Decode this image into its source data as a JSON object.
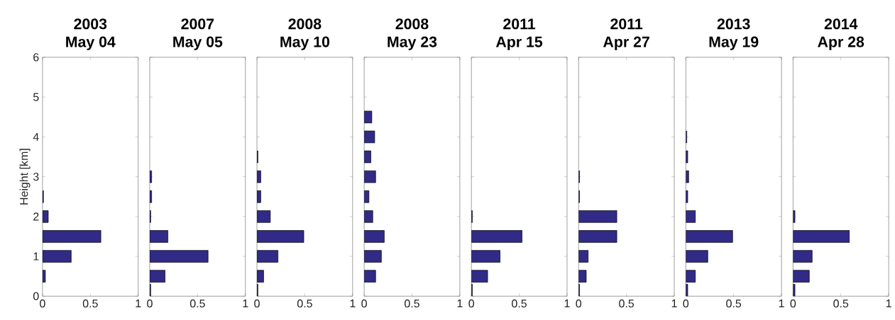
{
  "chart_data": [
    {
      "type": "bar",
      "orientation": "horizontal",
      "title": "2003",
      "subtitle": "May 04",
      "ylabel": "Height [km]",
      "x": [
        0.5,
        1,
        1.5,
        2,
        2.5
      ],
      "values": [
        0.03,
        0.3,
        0.61,
        0.06,
        0.01
      ],
      "color": "#312a87",
      "xlim": [
        0,
        1
      ],
      "xticks": [
        0,
        0.5,
        1
      ],
      "ylim": [
        0,
        6
      ],
      "yticks": [
        0,
        1,
        2,
        3,
        4,
        5,
        6
      ]
    },
    {
      "type": "bar",
      "orientation": "horizontal",
      "title": "2007",
      "subtitle": "May 05",
      "x": [
        0.15,
        0.5,
        1,
        1.5,
        2,
        2.5,
        3
      ],
      "values": [
        0.01,
        0.16,
        0.61,
        0.19,
        0.01,
        0.02,
        0.02
      ],
      "color": "#312a87",
      "xlim": [
        0,
        1
      ],
      "xticks": [
        0,
        0.5,
        1
      ],
      "ylim": [
        0,
        6
      ],
      "yticks": [
        0,
        1,
        2,
        3,
        4,
        5,
        6
      ],
      "tick_labels": "x"
    },
    {
      "type": "bar",
      "orientation": "horizontal",
      "title": "2008",
      "subtitle": "May 10",
      "x": [
        0.15,
        0.5,
        1,
        1.5,
        2,
        2.5,
        3,
        3.5
      ],
      "values": [
        0.01,
        0.07,
        0.22,
        0.49,
        0.14,
        0.04,
        0.04,
        0.01
      ],
      "color": "#312a87",
      "xlim": [
        0,
        1
      ],
      "xticks": [
        0,
        0.5,
        1
      ],
      "ylim": [
        0,
        6
      ],
      "yticks": [
        0,
        1,
        2,
        3,
        4,
        5,
        6
      ],
      "tick_labels": "x"
    },
    {
      "type": "bar",
      "orientation": "horizontal",
      "title": "2008",
      "subtitle": "May 23",
      "x": [
        0.5,
        1,
        1.5,
        2,
        2.5,
        3,
        3.5,
        4,
        4.5
      ],
      "values": [
        0.12,
        0.18,
        0.21,
        0.09,
        0.05,
        0.12,
        0.07,
        0.11,
        0.08
      ],
      "color": "#312a87",
      "xlim": [
        0,
        1
      ],
      "xticks": [
        0,
        0.5,
        1
      ],
      "ylim": [
        0,
        6
      ],
      "yticks": [
        0,
        1,
        2,
        3,
        4,
        5,
        6
      ],
      "tick_labels": "x"
    },
    {
      "type": "bar",
      "orientation": "horizontal",
      "title": "2011",
      "subtitle": "Apr 15",
      "x": [
        0.15,
        0.5,
        1,
        1.5,
        2
      ],
      "values": [
        0.01,
        0.17,
        0.3,
        0.53,
        0.01
      ],
      "color": "#312a87",
      "xlim": [
        0,
        1
      ],
      "xticks": [
        0,
        0.5,
        1
      ],
      "ylim": [
        0,
        6
      ],
      "yticks": [
        0,
        1,
        2,
        3,
        4,
        5,
        6
      ],
      "tick_labels": "x"
    },
    {
      "type": "bar",
      "orientation": "horizontal",
      "title": "2011",
      "subtitle": "Apr 27",
      "x": [
        0.15,
        0.5,
        1,
        1.5,
        2,
        2.5,
        3
      ],
      "values": [
        0.01,
        0.08,
        0.1,
        0.4,
        0.4,
        0.01,
        0.01
      ],
      "color": "#312a87",
      "xlim": [
        0,
        1
      ],
      "xticks": [
        0,
        0.5,
        1
      ],
      "ylim": [
        0,
        6
      ],
      "yticks": [
        0,
        1,
        2,
        3,
        4,
        5,
        6
      ],
      "tick_labels": "x"
    },
    {
      "type": "bar",
      "orientation": "horizontal",
      "title": "2013",
      "subtitle": "May 19",
      "x": [
        0.15,
        0.5,
        1,
        1.5,
        2,
        2.5,
        3,
        3.5,
        4
      ],
      "values": [
        0.02,
        0.1,
        0.23,
        0.49,
        0.1,
        0.02,
        0.03,
        0.02,
        0.01
      ],
      "color": "#312a87",
      "xlim": [
        0,
        1
      ],
      "xticks": [
        0,
        0.5,
        1
      ],
      "ylim": [
        0,
        6
      ],
      "yticks": [
        0,
        1,
        2,
        3,
        4,
        5,
        6
      ],
      "tick_labels": "x"
    },
    {
      "type": "bar",
      "orientation": "horizontal",
      "title": "2014",
      "subtitle": "Apr 28",
      "x": [
        0.15,
        0.5,
        1,
        1.5,
        2
      ],
      "values": [
        0.02,
        0.17,
        0.2,
        0.59,
        0.02
      ],
      "color": "#312a87",
      "xlim": [
        0,
        1
      ],
      "xticks": [
        0,
        0.5,
        1
      ],
      "ylim": [
        0,
        6
      ],
      "yticks": [
        0,
        1,
        2,
        3,
        4,
        5,
        6
      ],
      "tick_labels": "x"
    }
  ]
}
